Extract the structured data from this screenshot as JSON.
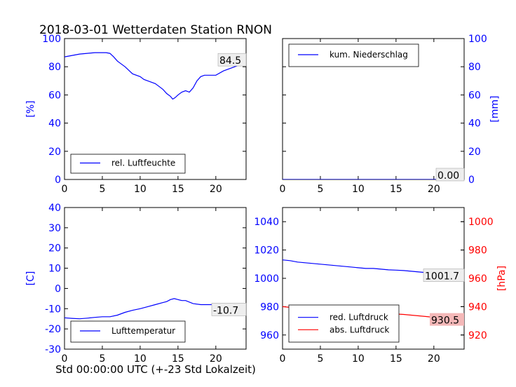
{
  "figure": {
    "title": "2018-03-01 Wetterdaten Station RNON",
    "xlabel": "Std 00:00:00 UTC (+-23 Std Lokalzeit)",
    "colors": {
      "primary": "#0000ff",
      "secondary": "#ff0000",
      "frame": "#000000",
      "grid": "none"
    }
  },
  "chart_data": [
    {
      "type": "line",
      "panel": "top-left",
      "title": "",
      "xlabel": "",
      "ylabel": "[%]",
      "xlim": [
        0,
        24
      ],
      "ylim": [
        0,
        100
      ],
      "x_ticks": [
        0,
        5,
        10,
        15,
        20
      ],
      "y_ticks": [
        0,
        20,
        40,
        60,
        80,
        100
      ],
      "grid": false,
      "legend_position": "bottom-left",
      "annotation": "84.5",
      "series": [
        {
          "name": "rel. Luftfeuchte",
          "color": "#0000ff",
          "x": [
            0,
            0.5,
            1,
            2,
            3,
            4,
            5,
            5.5,
            6,
            6.5,
            7,
            8,
            9,
            10,
            10.5,
            11,
            11.5,
            12,
            12.5,
            13,
            13.5,
            14,
            14.3,
            14.6,
            15,
            15.5,
            16,
            16.5,
            17,
            17.5,
            18,
            18.5,
            19,
            20,
            21,
            22,
            23,
            24
          ],
          "values": [
            87,
            87.5,
            88,
            89,
            89.5,
            90,
            90,
            90,
            89.5,
            87,
            84,
            80,
            75,
            73,
            71,
            70,
            69,
            68,
            66,
            64,
            61,
            59,
            57,
            58,
            60,
            62,
            63,
            62,
            65,
            70,
            73,
            74,
            74,
            74,
            77,
            79,
            81,
            84.5
          ]
        }
      ]
    },
    {
      "type": "line",
      "panel": "top-right",
      "title": "",
      "xlabel": "",
      "ylabel": "[mm]",
      "xlim": [
        0,
        24
      ],
      "ylim": [
        0,
        100
      ],
      "x_ticks": [
        0,
        5,
        10,
        15,
        20
      ],
      "y_ticks": [
        0,
        20,
        40,
        60,
        80,
        100
      ],
      "y_axis_side": "right",
      "grid": false,
      "legend_position": "top-left",
      "annotation": "0.00",
      "series": [
        {
          "name": "kum. Niederschlag",
          "color": "#0000ff",
          "x": [
            0,
            24
          ],
          "values": [
            0,
            0
          ]
        }
      ]
    },
    {
      "type": "line",
      "panel": "bottom-left",
      "title": "",
      "xlabel": "",
      "ylabel": "[C]",
      "xlim": [
        0,
        24
      ],
      "ylim": [
        -30,
        40
      ],
      "x_ticks": [
        0,
        5,
        10,
        15,
        20
      ],
      "y_ticks": [
        -30,
        -20,
        -10,
        0,
        10,
        20,
        30,
        40
      ],
      "grid": false,
      "legend_position": "bottom-left",
      "annotation": "-10.7",
      "series": [
        {
          "name": "Lufttemperatur",
          "color": "#0000ff",
          "x": [
            0,
            1,
            2,
            3,
            4,
            5,
            6,
            7,
            8,
            9,
            10,
            11,
            12,
            13,
            13.5,
            14,
            14.5,
            15,
            15.5,
            16,
            17,
            18,
            19,
            20,
            21,
            22,
            23,
            24
          ],
          "values": [
            -14.5,
            -14.8,
            -15,
            -14.7,
            -14.3,
            -14,
            -14,
            -13.2,
            -11.8,
            -10.8,
            -10,
            -9,
            -8,
            -7,
            -6.5,
            -5.5,
            -5,
            -5.5,
            -6,
            -6,
            -7.5,
            -8,
            -8,
            -8,
            -8.2,
            -8.5,
            -9.5,
            -10.7
          ]
        }
      ]
    },
    {
      "type": "line",
      "panel": "bottom-right",
      "title": "",
      "xlabel": "",
      "ylabel": "",
      "ylabel_right": "[hPa]",
      "xlim": [
        0,
        24
      ],
      "ylim": [
        950,
        1050
      ],
      "ylim_right": [
        910,
        1010
      ],
      "x_ticks": [
        0,
        5,
        10,
        15,
        20
      ],
      "y_ticks": [
        960,
        980,
        1000,
        1020,
        1040
      ],
      "y_ticks_right": [
        920,
        940,
        960,
        980,
        1000
      ],
      "grid": false,
      "legend_position": "bottom-left",
      "annotations": [
        "1001.7",
        "930.5"
      ],
      "series": [
        {
          "name": "red. Luftdruck",
          "color": "#0000ff",
          "axis": "left",
          "x": [
            0,
            1,
            2,
            3,
            4,
            5,
            6,
            7,
            8,
            9,
            10,
            11,
            12,
            13,
            14,
            15,
            16,
            17,
            18,
            19,
            20,
            21,
            22,
            23,
            24
          ],
          "values": [
            1013,
            1012.5,
            1011.5,
            1011,
            1010.5,
            1010,
            1009.5,
            1009,
            1008.5,
            1008,
            1007.5,
            1007,
            1007,
            1006.5,
            1006,
            1005.8,
            1005.5,
            1005,
            1004.5,
            1004,
            1003.5,
            1003,
            1002.5,
            1002,
            1001.7
          ]
        },
        {
          "name": "abs. Luftdruck",
          "color": "#ff0000",
          "axis": "right",
          "x": [
            0,
            1,
            2,
            3,
            4,
            5,
            6,
            7,
            8,
            9,
            10,
            11,
            12,
            13,
            14,
            15,
            16,
            17,
            18,
            19,
            20,
            21,
            22,
            23,
            24
          ],
          "values": [
            940,
            939.5,
            938,
            937.5,
            937,
            936.5,
            936,
            935.8,
            935.5,
            935.5,
            935.5,
            935.5,
            935.3,
            935,
            935,
            934.8,
            934.5,
            934,
            933.5,
            933,
            932.5,
            932,
            931.5,
            931,
            930.5
          ]
        }
      ]
    }
  ]
}
